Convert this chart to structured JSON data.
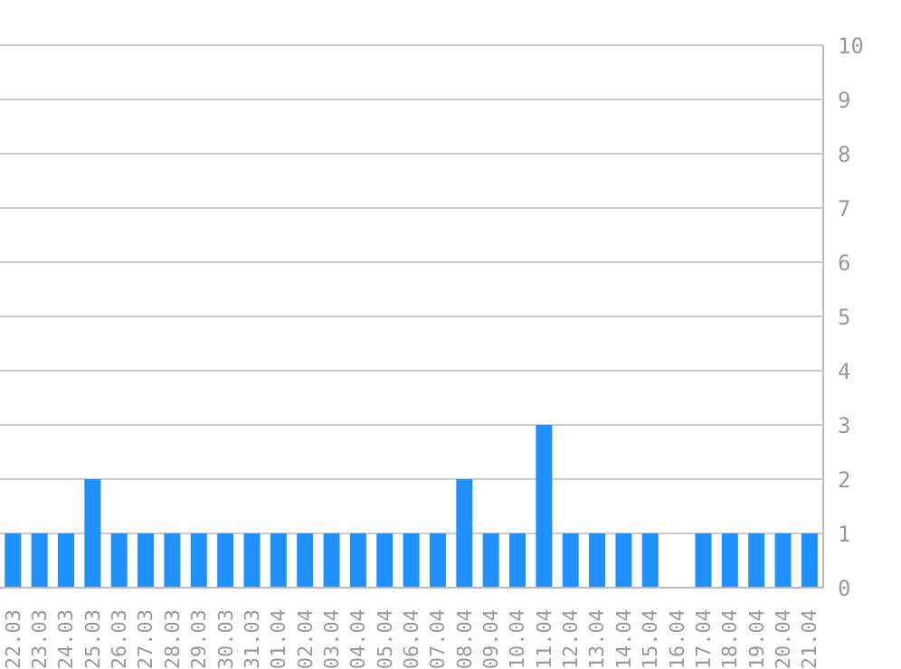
{
  "chart_data": {
    "type": "bar",
    "categories": [
      "22.03",
      "23.03",
      "24.03",
      "25.03",
      "26.03",
      "27.03",
      "28.03",
      "29.03",
      "30.03",
      "31.03",
      "01.04",
      "02.04",
      "03.04",
      "04.04",
      "05.04",
      "06.04",
      "07.04",
      "08.04",
      "09.04",
      "10.04",
      "11.04",
      "12.04",
      "13.04",
      "14.04",
      "15.04",
      "16.04",
      "17.04",
      "18.04",
      "19.04",
      "20.04",
      "21.04"
    ],
    "values": [
      1,
      1,
      1,
      2,
      1,
      1,
      1,
      1,
      1,
      1,
      1,
      1,
      1,
      1,
      1,
      1,
      1,
      2,
      1,
      1,
      3,
      1,
      1,
      1,
      1,
      0,
      1,
      1,
      1,
      1,
      1
    ],
    "color": "#1e90ff",
    "ylim": [
      0,
      10
    ],
    "yticks": [
      0,
      1,
      2,
      3,
      4,
      5,
      6,
      7,
      8,
      9,
      10
    ],
    "grid": "y"
  }
}
